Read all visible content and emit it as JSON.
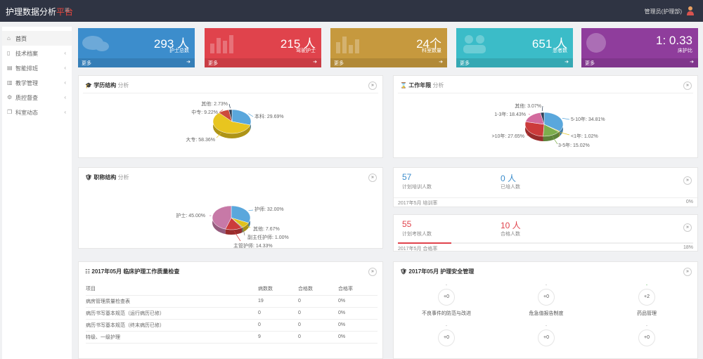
{
  "app": {
    "title": "护理数据分析",
    "title_accent": "平台",
    "menu_icon": "hamburger-icon",
    "user": "管理员(护理部)",
    "user_icon": "user-icon"
  },
  "sidebar": {
    "items": [
      {
        "label": "首页",
        "icon": "home-icon"
      },
      {
        "label": "技术档案",
        "icon": "file-icon"
      },
      {
        "label": "智能排班",
        "icon": "table-icon"
      },
      {
        "label": "教学管理",
        "icon": "bar-chart-icon"
      },
      {
        "label": "质控督查",
        "icon": "gear-icon"
      },
      {
        "label": "科室动态",
        "icon": "copy-icon"
      }
    ]
  },
  "stats": [
    {
      "value": "293 人",
      "label": "护士总数",
      "more": "更多",
      "color": "#3c8dcc"
    },
    {
      "value": "215 人",
      "label": "驾驶护士",
      "more": "更多",
      "color": "#e0434c"
    },
    {
      "value": "24个",
      "label": "科室数量",
      "more": "更多",
      "color": "#c6993e"
    },
    {
      "value": "651 人",
      "label": "患者数",
      "more": "更多",
      "color": "#3bbcc8"
    },
    {
      "value": "1: 0.33",
      "label": "床护比",
      "more": "更多",
      "color": "#8f3d9c"
    }
  ],
  "panels": {
    "education": {
      "title": "学历结构",
      "sub": "分析"
    },
    "years": {
      "title": "工作年限",
      "sub": "分析"
    },
    "titles": {
      "title": "职称结构",
      "sub": "分析"
    },
    "quality": {
      "title": "2017年05月 临床护理工作质量检查"
    },
    "safety": {
      "title": "2017年05月 护理安全管理"
    }
  },
  "chart_data": [
    {
      "type": "pie",
      "title": "学历结构 分析",
      "series": [
        {
          "values": [
            29.69,
            58.36,
            9.22,
            2.73
          ]
        }
      ],
      "categories": [
        "本科",
        "大专",
        "中专",
        "其他"
      ],
      "labels": [
        "本科: 29.69%",
        "大专: 58.36%",
        "中专: 9.22%",
        "其他: 2.73%"
      ],
      "colors": [
        "#5aa7dc",
        "#e8c51f",
        "#cc4a3c",
        "#2e4057"
      ]
    },
    {
      "type": "pie",
      "title": "工作年限 分析",
      "series": [
        {
          "values": [
            34.81,
            1.02,
            15.02,
            27.65,
            18.43,
            3.07
          ]
        }
      ],
      "categories": [
        "5-10年",
        "<1年",
        "3-5年",
        ">10年",
        "1-3年",
        "其他"
      ],
      "labels": [
        "5-10年: 34.81%",
        "<1年: 1.02%",
        "3-5年: 15.02%",
        ">10年: 27.65%",
        "1-3年: 18.43%",
        "其他: 3.07%"
      ],
      "colors": [
        "#5aa7dc",
        "#e0c21c",
        "#7dae4d",
        "#cc3b3b",
        "#d36b9e",
        "#2e4057"
      ]
    },
    {
      "type": "pie",
      "title": "职称结构 分析",
      "series": [
        {
          "values": [
            32.0,
            7.67,
            1.0,
            14.33,
            45.0
          ]
        }
      ],
      "categories": [
        "护师",
        "其他",
        "副主任护师",
        "主管护师",
        "护士"
      ],
      "labels": [
        "护师: 32.00%",
        "其他: 7.67%",
        "副主任护师: 1.00%",
        "主管护师: 14.33%",
        "护士: 45.00%"
      ],
      "colors": [
        "#5aa7dc",
        "#e0c21c",
        "#7a7a7a",
        "#cc3b3b",
        "#c779a7"
      ]
    }
  ],
  "training": {
    "planned": "57",
    "planned_label": "计划培训人数",
    "done": "0 人",
    "done_label": "已培人数",
    "foot_label": "2017年5月 培训率",
    "rate": "0%"
  },
  "exam": {
    "planned": "55",
    "planned_label": "计划考核人数",
    "passed": "10 人",
    "passed_label": "合格人数",
    "foot_label": "2017年5月 合格率",
    "rate": "18%"
  },
  "quality_table": {
    "headers": [
      "项目",
      "病数数",
      "合格数",
      "合格率"
    ],
    "rows": [
      [
        "病房管理质量检查表",
        "19",
        "0",
        "0%"
      ],
      [
        "病历书写基本规范（运行病历已修）",
        "0",
        "0",
        "0%"
      ],
      [
        "病历书写基本规范（终末病历已修）",
        "0",
        "0",
        "0%"
      ],
      [
        "特级、一级护理",
        "9",
        "0",
        "0%"
      ]
    ]
  },
  "safety_items": [
    {
      "value": "+0",
      "dot": "-",
      "label": "不良事件的防范与改进"
    },
    {
      "value": "+0",
      "dot": "-",
      "label": "危急值报告制度"
    },
    {
      "value": "+2",
      "dot": "-",
      "label": "药品管理"
    },
    {
      "value": "+0",
      "dot": "-",
      "label": ""
    },
    {
      "value": "+0",
      "dot": "-",
      "label": ""
    },
    {
      "value": "+0",
      "dot": "-",
      "label": ""
    }
  ],
  "ui": {
    "go": "»"
  }
}
